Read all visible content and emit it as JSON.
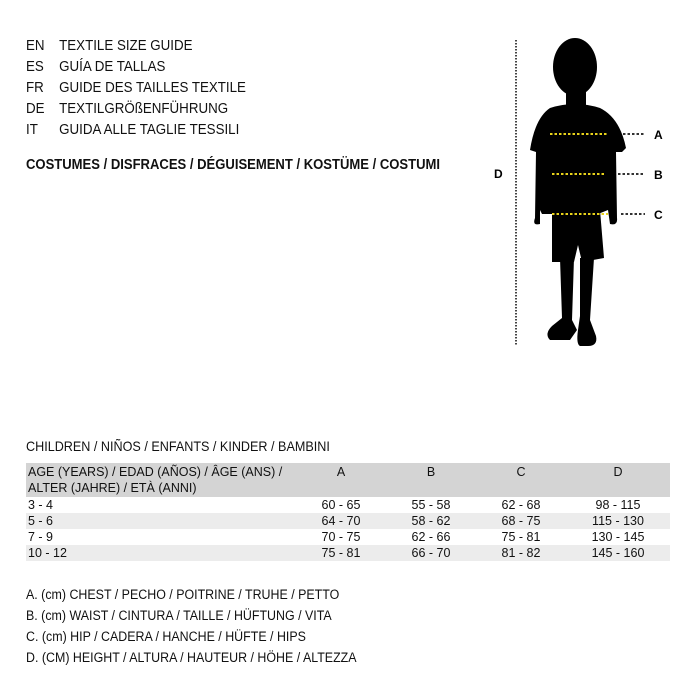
{
  "titles": [
    {
      "code": "EN",
      "text": "TEXTILE SIZE GUIDE"
    },
    {
      "code": "ES",
      "text": "GUÍA DE TALLAS"
    },
    {
      "code": "FR",
      "text": "GUIDE DES TAILLES TEXTILE"
    },
    {
      "code": "DE",
      "text": "TEXTILGRÖßENFÜHRUNG"
    },
    {
      "code": "IT",
      "text": "GUIDA ALLE TAGLIE TESSILI"
    }
  ],
  "category": "COSTUMES / DISFRACES / DÉGUISEMENT / KOSTÜME / COSTUMI",
  "figure": {
    "labels": {
      "a": "A",
      "b": "B",
      "c": "C",
      "d": "D"
    },
    "colors": {
      "silhouette": "#000000",
      "measure_line": "#e8d21a"
    }
  },
  "table": {
    "title": "CHILDREN / NIÑOS / ENFANTS / KINDER / BAMBINI",
    "headers": [
      "AGE (YEARS) / EDAD (AÑOS) / ÂGE (ANS) / ALTER (JAHRE) / ETÀ (ANNI)",
      "A",
      "B",
      "C",
      "D"
    ],
    "rows": [
      [
        "3 - 4",
        "60 - 65",
        "55 - 58",
        "62 - 68",
        "98 - 115"
      ],
      [
        "5 - 6",
        "64 - 70",
        "58 - 62",
        "68 - 75",
        "115 - 130"
      ],
      [
        "7 - 9",
        "70 - 75",
        "62 - 66",
        "75 - 81",
        "130 - 145"
      ],
      [
        "10 - 12",
        "75 - 81",
        "66 - 70",
        "81 - 82",
        "145 - 160"
      ]
    ]
  },
  "legend": [
    "A. (cm) CHEST / PECHO / POITRINE / TRUHE / PETTO",
    "B. (cm) WAIST / CINTURA / TAILLE / HÜFTUNG / VITA",
    "C. (cm) HIP / CADERA / HANCHE / HÜFTE / HIPS",
    "D. (CM) HEIGHT / ALTURA / HAUTEUR / HÖHE / ALTEZZA"
  ]
}
